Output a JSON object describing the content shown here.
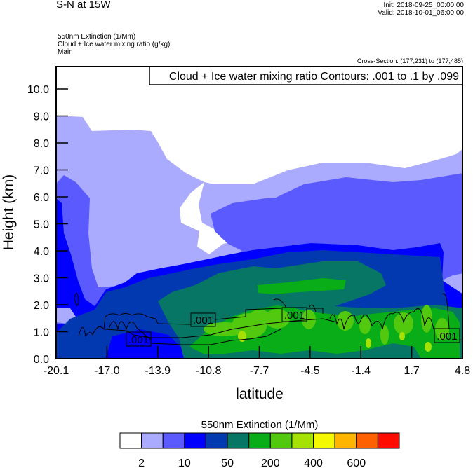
{
  "header": {
    "title": "S-N at 15W",
    "init": "Init: 2018-09-25_00:00:00",
    "valid": "Valid: 2018-10-01_06:00:00",
    "fields": [
      "550nm Extinction   (1/Mm)",
      "Cloud + Ice water mixing ratio   (g/kg)",
      "Main"
    ],
    "cross_section": "Cross-Section: (177,231) to (177,485)"
  },
  "chart_data": {
    "type": "heatmap",
    "subtype": "filled contour cross-section with line contours",
    "xlabel": "latitude",
    "ylabel": "Height (km)",
    "xticks": [
      "-20.1",
      "-17.0",
      "-13.9",
      "-10.8",
      "-7.7",
      "-4.5",
      "-1.4",
      "1.7",
      "4.8"
    ],
    "xlim": [
      -20.1,
      4.8
    ],
    "yticks": [
      "0.0",
      "1.0",
      "2.0",
      "3.0",
      "4.0",
      "5.0",
      "6.0",
      "7.0",
      "8.0",
      "9.0",
      "10.0"
    ],
    "ylim": [
      0,
      10.8
    ],
    "contour_legend": "Cloud + Ice water mixing ratio Contours: .001 to .1 by .099",
    "contour_labels": [
      ".001",
      ".001",
      ".001",
      ".001"
    ],
    "colorbar": {
      "title": "550nm Extinction  (1/Mm)",
      "colors": [
        "#ffffff",
        "#aaaaff",
        "#5a5aff",
        "#0000ff",
        "#0339b0",
        "#077665",
        "#08ad18",
        "#52c80e",
        "#a5e204",
        "#f4f800",
        "#ffb400",
        "#ff6000",
        "#ff0c00"
      ],
      "labels": [
        {
          "after_box": 1,
          "text": "2"
        },
        {
          "after_box": 3,
          "text": "10"
        },
        {
          "after_box": 5,
          "text": "50"
        },
        {
          "after_box": 7,
          "text": "200"
        },
        {
          "after_box": 9,
          "text": "400"
        },
        {
          "after_box": 11,
          "text": "600"
        }
      ]
    }
  }
}
